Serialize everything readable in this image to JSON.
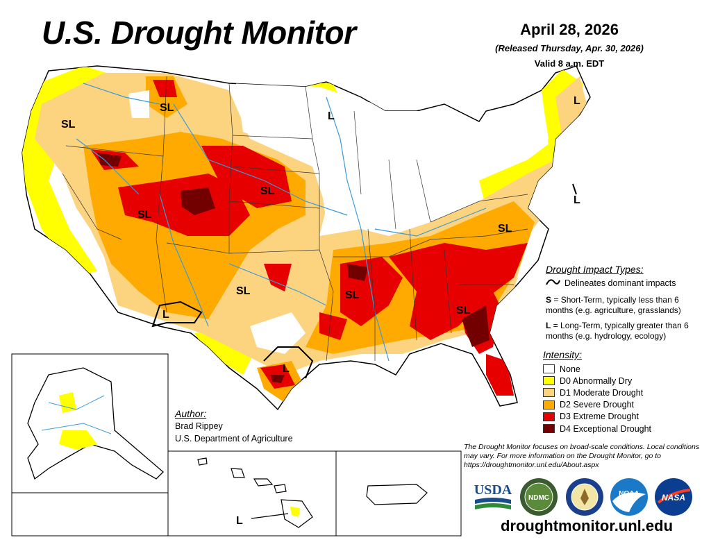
{
  "header": {
    "title": "U.S. Drought Monitor",
    "date": "April 28, 2026",
    "released": "(Released Thursday, Apr. 30, 2026)",
    "valid": "Valid 8 a.m. EDT"
  },
  "impact_types": {
    "title": "Drought Impact Types:",
    "line_desc": "Delineates dominant impacts",
    "short_term_key": "S",
    "short_term_desc": " = Short-Term, typically less than 6 months (e.g. agriculture, grasslands)",
    "long_term_key": "L",
    "long_term_desc": " = Long-Term, typically greater than 6 months (e.g. hydrology, ecology)"
  },
  "intensity": {
    "title": "Intensity:",
    "levels": [
      {
        "label": "None",
        "color": "#ffffff"
      },
      {
        "label": "D0 Abnormally Dry",
        "color": "#ffff00"
      },
      {
        "label": "D1 Moderate Drought",
        "color": "#fcd37f"
      },
      {
        "label": "D2 Severe Drought",
        "color": "#ffaa00"
      },
      {
        "label": "D3 Extreme Drought",
        "color": "#e60000"
      },
      {
        "label": "D4 Exceptional Drought",
        "color": "#730000"
      }
    ]
  },
  "author": {
    "title": "Author:",
    "name": "Brad Rippey",
    "org": "U.S. Department of Agriculture"
  },
  "note": "The Drought Monitor focuses on broad-scale conditions. Local conditions may vary. For more information on the Drought Monitor, go to https://droughtmonitor.unl.edu/About.aspx",
  "url": "droughtmonitor.unl.edu",
  "logos": {
    "usda": "USDA",
    "ndmc": "NDMC",
    "noaa": "NOAA",
    "nasa": "NASA"
  },
  "map_labels": {
    "sl": "SL",
    "l": "L"
  },
  "colors": {
    "water": "#3a9ad9",
    "border": "#000000"
  }
}
